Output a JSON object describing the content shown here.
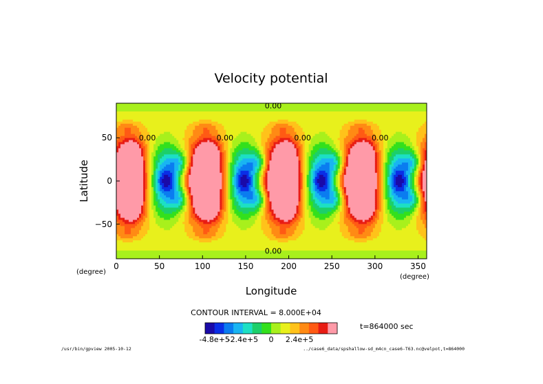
{
  "chart_data": {
    "type": "heatmap",
    "title": "Velocity potential",
    "xlabel": "Longitude",
    "ylabel": "Latitude",
    "x_unit": "(degree)",
    "y_unit": "(degree)",
    "xlim": [
      0,
      360
    ],
    "ylim": [
      -90,
      90
    ],
    "x_ticks": [
      0,
      50,
      100,
      150,
      200,
      250,
      300,
      350
    ],
    "y_ticks": [
      -50,
      0,
      50
    ],
    "contour_interval_label": "CONTOUR INTERVAL = 8.000E+04",
    "contour_interval": 80000,
    "contour_labels": [
      "0.00",
      "0.00",
      "0.00",
      "0.00",
      "0.00",
      "0.00",
      "0.00",
      "0.00"
    ],
    "time_label": "t=864000 sec",
    "colorbar": {
      "tick_labels": [
        "-4.8e+5",
        "-2.4e+5",
        "0",
        "2.4e+5"
      ],
      "levels": [
        -480000,
        -400000,
        -320000,
        -240000,
        -160000,
        -80000,
        0,
        80000,
        160000,
        240000,
        320000,
        400000,
        480000
      ],
      "colors": [
        "#1a0aa8",
        "#0a2ee6",
        "#0a7cf0",
        "#19b5f2",
        "#1de0c4",
        "#1ccf6a",
        "#33e01c",
        "#a8f01c",
        "#e8f01c",
        "#ffc21a",
        "#ff8a14",
        "#ff5a14",
        "#e81c14",
        "#ff9aa8"
      ]
    },
    "wave_pattern": {
      "zonal_wavenumber": 4,
      "minima_longitudes": [
        58,
        148,
        238,
        328
      ],
      "minima_latitude": 0,
      "maxima_longitudes": [
        13,
        103,
        193,
        283
      ]
    }
  },
  "footer": {
    "left": "/usr/bin/gpview  2005-10-12",
    "right": "../case6_data/spshallow-sd_m4cn_case6-T63.nc@velpot,t=864000"
  }
}
